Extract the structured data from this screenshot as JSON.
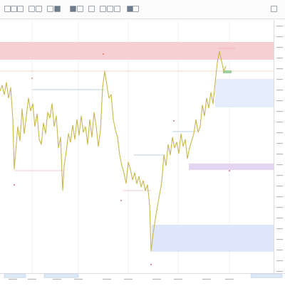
{
  "toolbar": {
    "buttons": [
      "pointer-icon",
      "crosshair-icon",
      "line-icon",
      "ray-icon",
      "rect-icon",
      "fib-icon",
      "text-icon",
      "brush-icon",
      "measure-icon",
      "zoom-icon",
      "magnet-icon",
      "lock-icon",
      "eye-icon",
      "trash-icon",
      "layers-icon",
      "settings-icon"
    ]
  },
  "chart": {
    "type": "line",
    "series_color": "#c8b84a",
    "zones": [
      {
        "name": "resistance-zone",
        "color": "#f6cfd3"
      },
      {
        "name": "demand-zone-upper",
        "color": "#e6eefb"
      },
      {
        "name": "demand-zone-lower",
        "color": "#dde6fa"
      },
      {
        "name": "level-zone",
        "color": "#e3d6f3"
      }
    ]
  },
  "chart_data": {
    "type": "line",
    "title": "",
    "xlabel": "",
    "ylabel": ""
  }
}
